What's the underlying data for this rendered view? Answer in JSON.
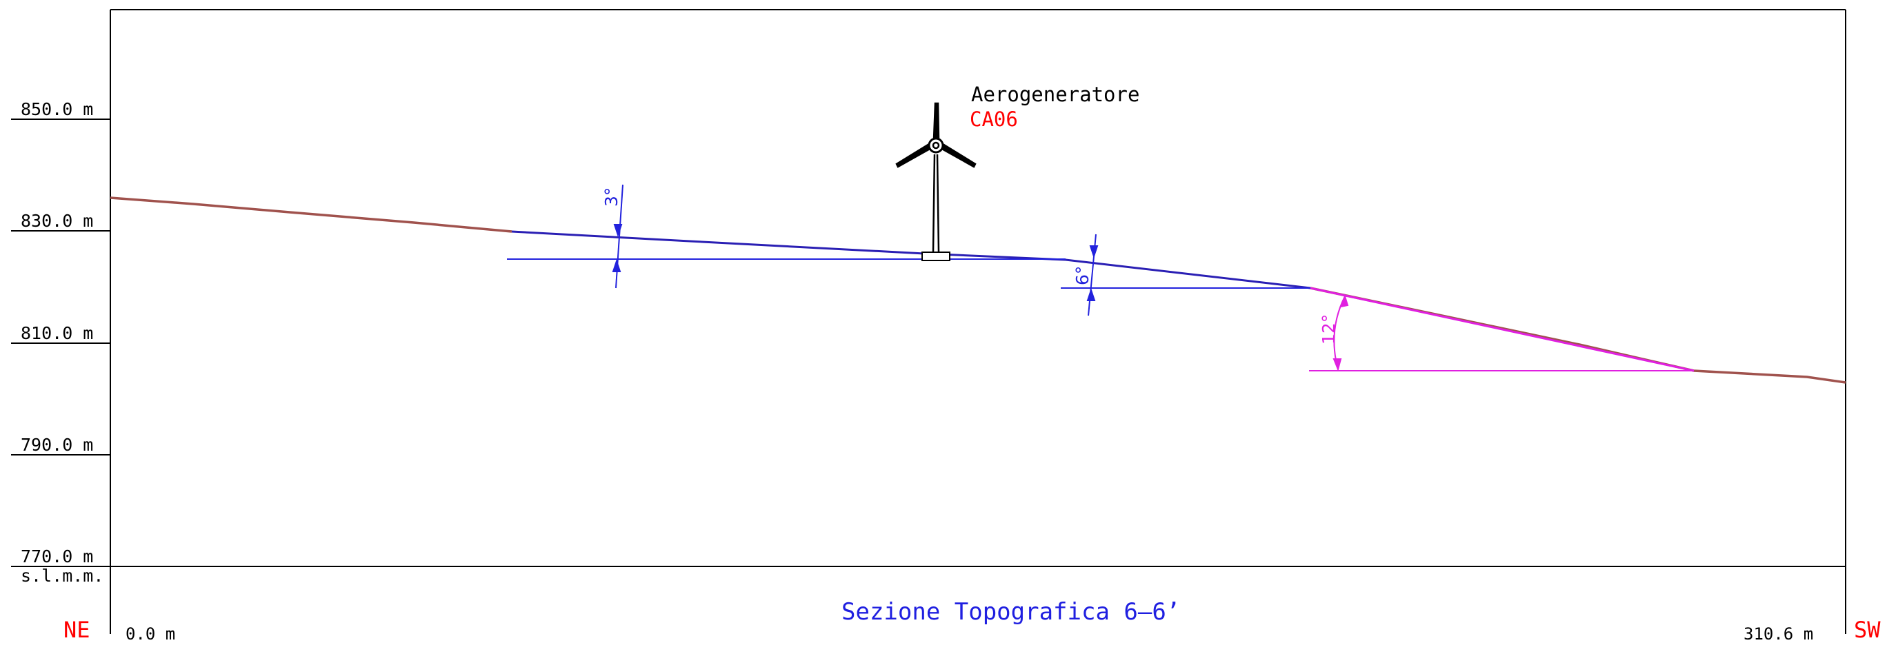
{
  "colors": {
    "frame": "#000000",
    "terrain": "#a0524d",
    "platform": "#2a1fb4",
    "guide_blue": "#2222dd",
    "guide_magenta": "#e020e0",
    "red_label": "#ff0000",
    "title_blue": "#1f1fe0"
  },
  "elevation_labels": [
    "850.0  m",
    "830.0  m",
    "810.0  m",
    "790.0  m",
    "770.0  m"
  ],
  "datum_label": "s.l.m.m.",
  "turbine": {
    "label": "Aerogeneratore",
    "id": "CA06",
    "icon": "wind-turbine-icon"
  },
  "angles": {
    "a1": "3°",
    "a2": "6°",
    "a3": "12°"
  },
  "title": "Sezione  Topografica  6–6’",
  "ends": {
    "left_dir": "NE",
    "right_dir": "SW",
    "left_dist": "0.0  m",
    "right_dist": "310.6  m"
  }
}
